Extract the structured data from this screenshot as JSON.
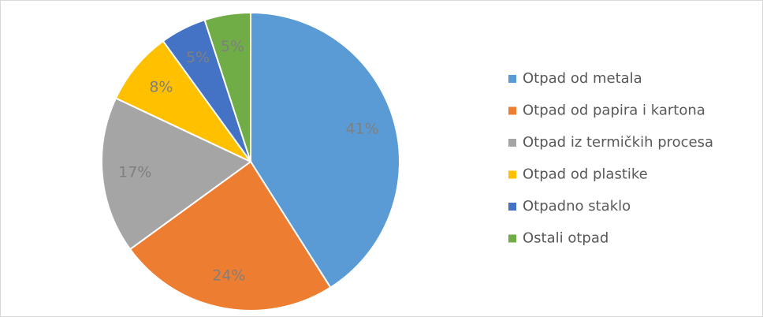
{
  "chart_data": {
    "type": "pie",
    "categories": [
      "Otpad od metala",
      "Otpad od papira i kartona",
      "Otpad iz termičkih procesa",
      "Otpad od plastike",
      "Otpadno staklo",
      "Ostali otpad"
    ],
    "values": [
      41,
      24,
      17,
      8,
      5,
      5
    ],
    "value_labels": [
      "41%",
      "24%",
      "17%",
      "8%",
      "5%",
      "5%"
    ],
    "colors": [
      "#5b9bd5",
      "#ed7d31",
      "#a5a5a5",
      "#ffc000",
      "#4472c4",
      "#70ad47"
    ],
    "legend": "right"
  }
}
